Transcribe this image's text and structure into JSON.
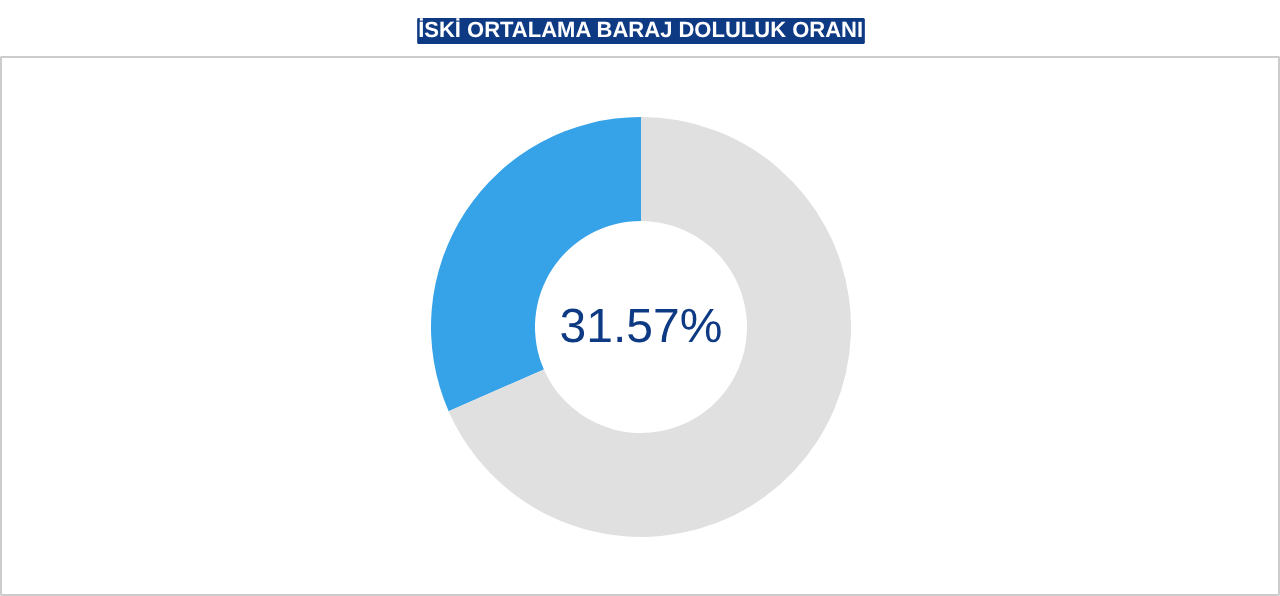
{
  "chart_data": {
    "type": "donut",
    "title": "İSKİ ORTALAMA BARAJ DOLULUK ORANI",
    "categories": [
      null,
      null
    ],
    "values": [
      31.57,
      68.43
    ],
    "colors": [
      "#36a2e8",
      "#e0e0e0"
    ],
    "value_labels": [
      "31.57%",
      null
    ]
  }
}
